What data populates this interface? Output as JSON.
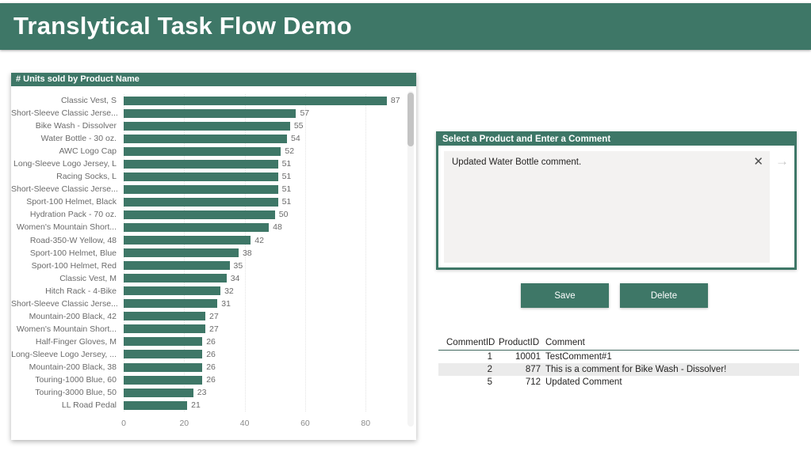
{
  "header": {
    "title": "Translytical Task Flow Demo"
  },
  "chart_data": {
    "type": "bar",
    "orientation": "horizontal",
    "title": "# Units sold by Product Name",
    "categories": [
      "Classic Vest, S",
      "Short-Sleeve Classic Jerse...",
      "Bike Wash - Dissolver",
      "Water Bottle - 30 oz.",
      "AWC Logo Cap",
      "Long-Sleeve Logo Jersey, L",
      "Racing Socks, L",
      "Short-Sleeve Classic Jerse...",
      "Sport-100 Helmet, Black",
      "Hydration Pack - 70 oz.",
      "Women's Mountain Short...",
      "Road-350-W Yellow, 48",
      "Sport-100 Helmet, Blue",
      "Sport-100 Helmet, Red",
      "Classic Vest, M",
      "Hitch Rack - 4-Bike",
      "Short-Sleeve Classic Jerse...",
      "Mountain-200 Black, 42",
      "Women's Mountain Short...",
      "Half-Finger Gloves, M",
      "Long-Sleeve Logo Jersey, ...",
      "Mountain-200 Black, 38",
      "Touring-1000 Blue, 60",
      "Touring-3000 Blue, 50",
      "LL Road Pedal"
    ],
    "values": [
      87,
      57,
      55,
      54,
      52,
      51,
      51,
      51,
      51,
      50,
      48,
      42,
      38,
      35,
      34,
      32,
      31,
      27,
      27,
      26,
      26,
      26,
      26,
      23,
      21
    ],
    "xlabel": "",
    "ylabel": "",
    "x_ticks": [
      "0",
      "20",
      "40",
      "60",
      "80"
    ],
    "xlim": [
      0,
      92
    ],
    "grid": true,
    "legend": "none",
    "bar_color": "#3E7767"
  },
  "comment_panel": {
    "title": "Select a Product and Enter a Comment",
    "input_value": "Updated Water Bottle comment.",
    "icons": {
      "clear": "✕",
      "submit": "→"
    }
  },
  "actions": {
    "save_label": "Save",
    "delete_label": "Delete"
  },
  "comments_table": {
    "columns": [
      "CommentID",
      "ProductID",
      "Comment"
    ],
    "rows": [
      [
        "1",
        "10001",
        "TestComment#1"
      ],
      [
        "2",
        "877",
        "This is a comment for Bike Wash - Dissolver!"
      ],
      [
        "5",
        "712",
        "Updated Comment"
      ]
    ],
    "highlighted_row_index": 1
  },
  "colors": {
    "accent_green": "#3E7767",
    "input_background": "#F3F2F1",
    "row_highlight": "#EBEBEB"
  }
}
